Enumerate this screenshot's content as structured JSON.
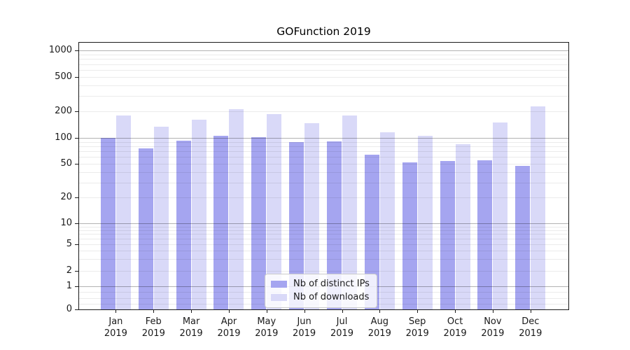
{
  "chart_data": {
    "type": "bar",
    "title": "GOFunction 2019",
    "x_months": [
      "Jan",
      "Feb",
      "Mar",
      "Apr",
      "May",
      "Jun",
      "Jul",
      "Aug",
      "Sep",
      "Oct",
      "Nov",
      "Dec"
    ],
    "x_year": "2019",
    "series": [
      {
        "name": "Nb of distinct IPs",
        "color": "#a5a5f0",
        "values": [
          100,
          75,
          93,
          105,
          102,
          90,
          92,
          64,
          52,
          54,
          55,
          47
        ]
      },
      {
        "name": "Nb of downloads",
        "color": "#d9d9f8",
        "values": [
          179,
          134,
          160,
          212,
          186,
          148,
          179,
          115,
          105,
          84,
          149,
          228
        ]
      }
    ],
    "y_axis": {
      "scale": "symlog",
      "ticks": [
        0,
        1,
        2,
        5,
        10,
        20,
        50,
        100,
        200,
        500,
        1000
      ],
      "range": [
        0,
        1000
      ],
      "label": ""
    },
    "legend": {
      "position": "lower center"
    },
    "grid": true
  }
}
